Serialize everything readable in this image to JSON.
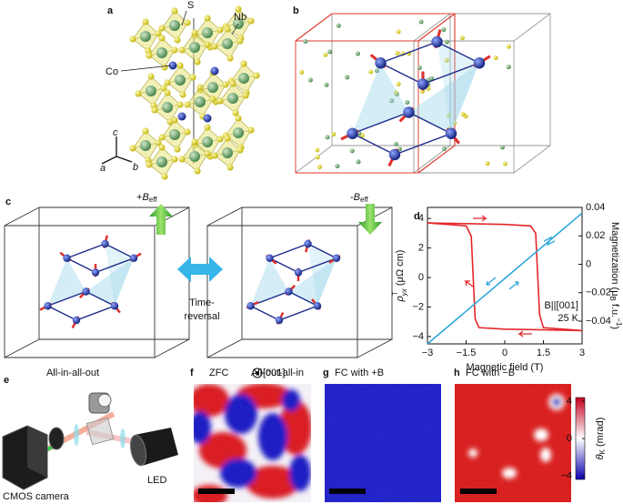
{
  "panel_labels": [
    "a",
    "b",
    "c",
    "d",
    "e",
    "f",
    "g",
    "h"
  ],
  "crystal": {
    "labels": [
      "S",
      "Nb",
      "Co"
    ],
    "axes": [
      "c",
      "a",
      "b"
    ]
  },
  "spin_flip": {
    "fields": [
      {
        "sign": "+",
        "symbol": "B",
        "subscript": "eff"
      },
      {
        "sign": "-",
        "symbol": "B",
        "subscript": "eff"
      }
    ],
    "operation": [
      "Time-",
      "reversal"
    ],
    "configurations": [
      "All-in-all-out",
      "All-out-all-in"
    ]
  },
  "chart_data": {
    "type": "line",
    "xlabel": "Magnetic field (T)",
    "ylabel": {
      "symbol": "ρ",
      "superscript": "T",
      "subscript": "yx",
      "unit": " (μΩ cm)"
    },
    "y2label": {
      "text": "Magnetization (μ",
      "subscript": "B",
      "unit": " f.u.",
      "superscript": "−1",
      "close": ")"
    },
    "xlim": [
      -3,
      3
    ],
    "xticks": [
      {
        "value": -3,
        "label": "−3"
      },
      {
        "value": -1.5,
        "label": "−1.5"
      },
      0,
      1.5,
      3
    ],
    "ylim": [
      -4.5,
      4.75
    ],
    "yticks": [
      {
        "value": -4,
        "label": "−4"
      },
      {
        "value": -2,
        "label": "−2"
      },
      0,
      2,
      4
    ],
    "y2lim": [
      -0.056,
      0.04
    ],
    "y2ticks": [
      {
        "value": -0.04,
        "label": "−0.04"
      },
      {
        "value": -0.02,
        "label": "−0.02"
      },
      0,
      0.02,
      0.04
    ],
    "series": [
      {
        "color": "#e3262b",
        "x": [
          -3,
          -1.5,
          0,
          1.0,
          1.2,
          1.35,
          1.5,
          3
        ],
        "values": [
          3.7,
          3.65,
          3.6,
          3.5,
          3.0,
          -2.5,
          -3.4,
          -3.6
        ]
      },
      {
        "color": "#e3262b",
        "x": [
          3,
          1.5,
          0,
          -1.0,
          -1.15,
          -1.3,
          -1.5,
          -3
        ],
        "values": [
          -3.6,
          -3.55,
          -3.5,
          -3.4,
          -2.8,
          2.8,
          3.5,
          3.7
        ]
      },
      {
        "color": "#2ea6dc",
        "axis": "y2",
        "x": [
          -3,
          -1.5,
          0,
          1.5,
          3
        ],
        "values": [
          -0.056,
          -0.033,
          -0.01,
          0.013,
          0.036
        ]
      }
    ],
    "annotations": [
      "B||[001]",
      "25 K"
    ]
  },
  "setup": {
    "labels": [
      "CMOS camera",
      "LED"
    ]
  },
  "kerr_maps": {
    "titles": [
      "ZFC",
      "FC with +B",
      "FC with −B"
    ],
    "orientation": "[001]",
    "colorbar": {
      "lim": [
        -4.4,
        4.4
      ],
      "ticks": [
        {
          "value": 4,
          "label": "4"
        },
        0,
        {
          "value": -4,
          "label": "−4"
        }
      ],
      "label": {
        "symbol": "θ",
        "subscript": "K",
        "unit": " (mrad)"
      }
    }
  }
}
